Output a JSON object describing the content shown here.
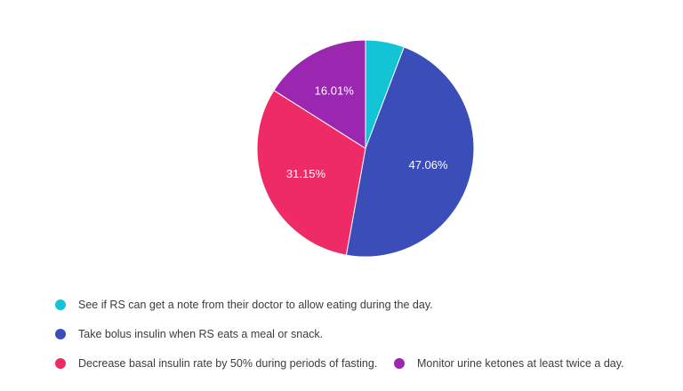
{
  "chart_data": {
    "type": "pie",
    "slices": [
      {
        "label": "See if RS can get a note from their doctor to allow eating during the day.",
        "value": 5.78,
        "color": "#12c4d6"
      },
      {
        "label": "Take bolus insulin when RS eats a meal or snack.",
        "value": 47.06,
        "display": "47.06%",
        "color": "#3b4db8"
      },
      {
        "label": "Decrease basal insulin rate by 50% during periods of fasting.",
        "value": 31.15,
        "display": "31.15%",
        "color": "#ee2a67"
      },
      {
        "label": "Monitor urine ketones at least twice a day.",
        "value": 16.01,
        "display": "16.01%",
        "color": "#9b27b0"
      }
    ],
    "legend_position": "bottom"
  }
}
